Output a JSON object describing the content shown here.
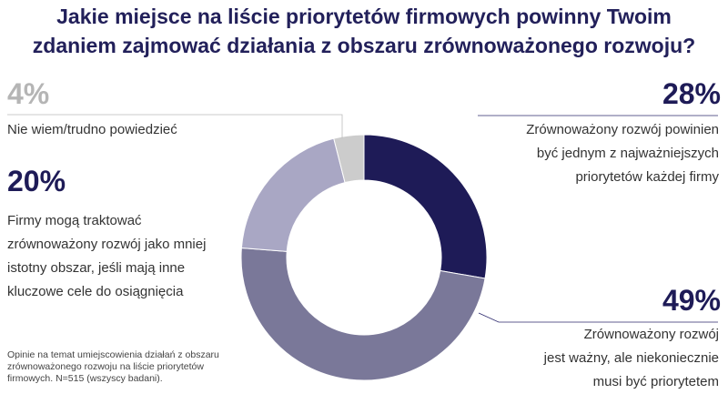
{
  "title": {
    "line1": "Jakie miejsce na liście priorytetów firmowych powinny Twoim",
    "line2": "zdaniem zajmować działania z obszaru zrównoważonego rozwoju?"
  },
  "colors": {
    "title": "#22205a",
    "dark": "#1e1b57",
    "medium": "#7a7899",
    "light": "#a9a7c4",
    "gray": "#cccccc",
    "pct_gray": "#b5b5b5",
    "connector": "#2d2a6e"
  },
  "chart_data": {
    "type": "pie",
    "donut": true,
    "series": [
      {
        "value": 28,
        "label": "28%",
        "description": [
          "Zrównoważony rozwój powinien",
          "być jednym z najważniejszych",
          "priorytetów każdej firmy"
        ],
        "color": "#1e1b57"
      },
      {
        "value": 49,
        "label": "49%",
        "description": [
          "Zrównoważony rozwój",
          "jest ważny, ale niekoniecznie",
          "musi być priorytetem"
        ],
        "color": "#7a7899"
      },
      {
        "value": 20,
        "label": "20%",
        "description": [
          "Firmy mogą traktować",
          "zrównoważony rozwój jako mniej",
          "istotny obszar, jeśli mają inne",
          "kluczowe cele do osiągnięcia"
        ],
        "color": "#a9a7c4"
      },
      {
        "value": 4,
        "label": "4%",
        "description": [
          "Nie wiem/trudno powiedzieć"
        ],
        "color": "#cccccc"
      }
    ]
  },
  "footnote": [
    "Opinie na temat umiejscowienia działań z obszaru",
    "zrównoważonego rozwoju na liście priorytetów",
    "firmowych. N=515 (wszyscy badani)."
  ]
}
